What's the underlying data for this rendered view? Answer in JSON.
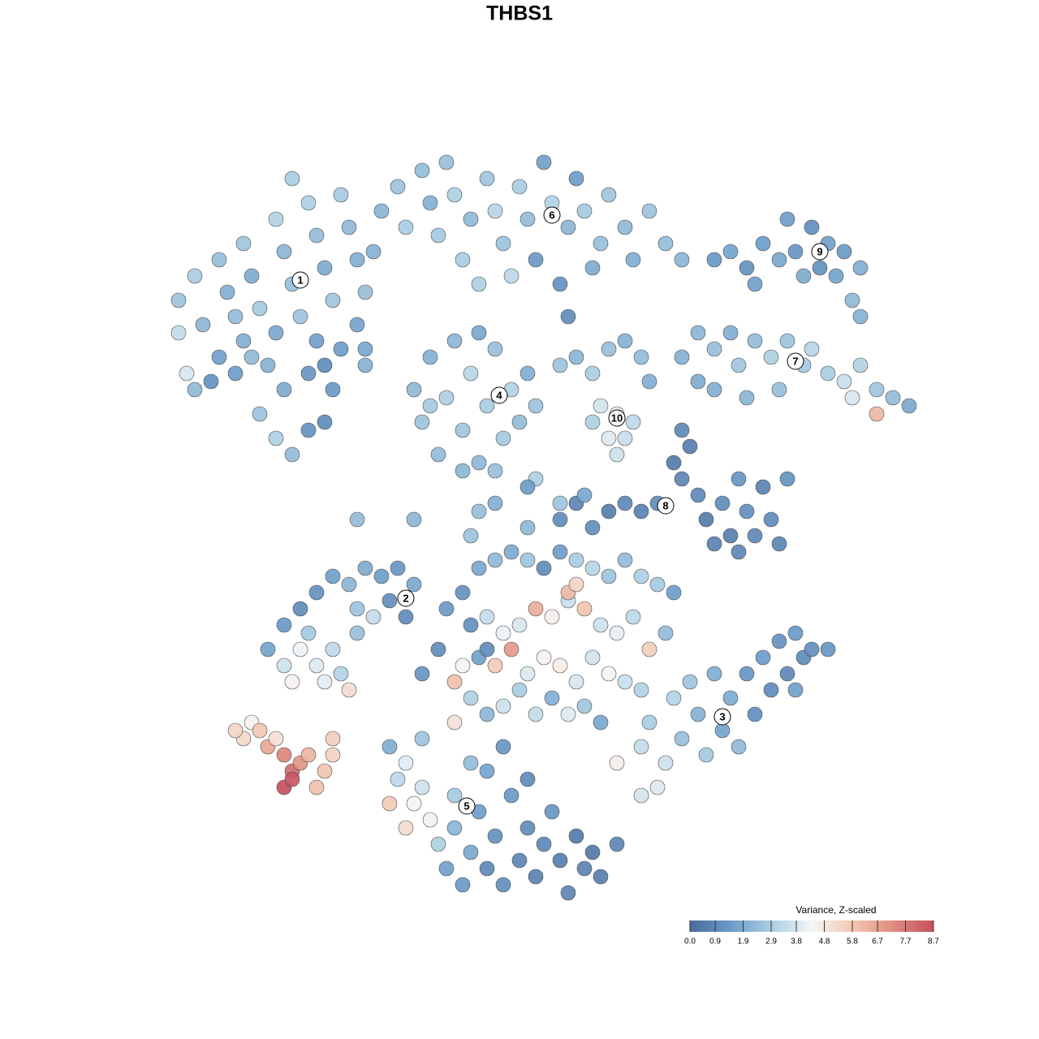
{
  "chart_data": {
    "type": "scatter",
    "title": "THBS1",
    "xlim": [
      0,
      128
    ],
    "ylim": [
      0,
      128
    ],
    "x": [
      22,
      24,
      22,
      25,
      27,
      28,
      30,
      31,
      29,
      32,
      34,
      35,
      36,
      34,
      37,
      38,
      39,
      40,
      41,
      39,
      42,
      43,
      44,
      45,
      44,
      33,
      35,
      38,
      40,
      32,
      34,
      36,
      38,
      40,
      41,
      31,
      29,
      26,
      45,
      46,
      23,
      36,
      42,
      30,
      27,
      47,
      49,
      50,
      52,
      53,
      54,
      55,
      56,
      58,
      60,
      61,
      62,
      64,
      65,
      66,
      67,
      68,
      70,
      71,
      72,
      74,
      75,
      77,
      78,
      80,
      82,
      69,
      70,
      57,
      63,
      73,
      84,
      59,
      51,
      52,
      53,
      54,
      55,
      56,
      57,
      58,
      59,
      60,
      61,
      62,
      63,
      64,
      65,
      66,
      57,
      61,
      53,
      59,
      69,
      71,
      73,
      75,
      77,
      79,
      80,
      74,
      76,
      77,
      75,
      78,
      73,
      76,
      88,
      90,
      92,
      94,
      96,
      98,
      100,
      102,
      104,
      106,
      103,
      101,
      99,
      105,
      106,
      97,
      93,
      86,
      88,
      90,
      91,
      93,
      95,
      97,
      99,
      100,
      102,
      104,
      106,
      108,
      110,
      112,
      96,
      92,
      88,
      108,
      105,
      86,
      84,
      69,
      71,
      73,
      75,
      77,
      79,
      81,
      83,
      84,
      85,
      86,
      87,
      88,
      89,
      90,
      91,
      92,
      93,
      94,
      95,
      96,
      97,
      84,
      91,
      35,
      37,
      39,
      41,
      43,
      45,
      47,
      49,
      51,
      44,
      46,
      48,
      50,
      33,
      35,
      37,
      39,
      41,
      36,
      40,
      42,
      43,
      44,
      38,
      30,
      31,
      32,
      33,
      35,
      36,
      35,
      36,
      37,
      38,
      39,
      40,
      41,
      41,
      34,
      29,
      57,
      59,
      61,
      63,
      65,
      67,
      69,
      71,
      73,
      75,
      77,
      79,
      81,
      83,
      58,
      60,
      62,
      64,
      66,
      68,
      70,
      72,
      74,
      76,
      78,
      80,
      82,
      57,
      59,
      61,
      63,
      65,
      67,
      69,
      71,
      73,
      75,
      77,
      79,
      56,
      58,
      60,
      62,
      64,
      66,
      68,
      70,
      72,
      74,
      56,
      52,
      54,
      70,
      71,
      60,
      55,
      79,
      80,
      82,
      84,
      86,
      87,
      89,
      90,
      91,
      92,
      93,
      94,
      95,
      96,
      97,
      98,
      99,
      100,
      102,
      88,
      85,
      83,
      81,
      79,
      76,
      98,
      48,
      49,
      50,
      51,
      52,
      48,
      53,
      54,
      55,
      56,
      57,
      58,
      59,
      60,
      61,
      62,
      63,
      64,
      65,
      66,
      67,
      68,
      69,
      70,
      71,
      72,
      73,
      74,
      76,
      60,
      62,
      58,
      56,
      65,
      52,
      50,
      44,
      51,
      61,
      58,
      65,
      69,
      72,
      66,
      59,
      45,
      24,
      65
    ],
    "y": [
      91,
      94,
      87,
      88,
      96,
      92,
      98,
      94,
      89,
      90,
      101,
      97,
      93,
      87,
      89,
      103,
      99,
      95,
      91,
      86,
      104,
      100,
      96,
      92,
      88,
      83,
      80,
      82,
      83,
      77,
      74,
      72,
      75,
      76,
      80,
      84,
      82,
      81,
      85,
      97,
      82,
      106,
      85,
      86,
      84,
      102,
      105,
      100,
      107,
      103,
      99,
      108,
      104,
      101,
      106,
      102,
      98,
      105,
      101,
      96,
      108,
      103,
      100,
      106,
      102,
      98,
      104,
      100,
      96,
      102,
      98,
      93,
      89,
      96,
      94,
      95,
      96,
      93,
      80,
      76,
      84,
      72,
      79,
      86,
      75,
      82,
      71,
      78,
      85,
      74,
      80,
      76,
      82,
      78,
      70,
      70,
      78,
      87,
      83,
      84,
      82,
      85,
      86,
      84,
      81,
      78,
      77,
      74,
      74,
      76,
      76,
      72,
      96,
      97,
      95,
      98,
      96,
      97,
      100,
      98,
      97,
      95,
      94,
      95,
      94,
      91,
      89,
      101,
      93,
      87,
      85,
      87,
      83,
      86,
      84,
      86,
      83,
      85,
      82,
      81,
      83,
      80,
      79,
      78,
      80,
      79,
      80,
      77,
      79,
      81,
      84,
      64,
      66,
      63,
      65,
      66,
      65,
      66,
      71,
      69,
      73,
      67,
      64,
      61,
      66,
      62,
      60,
      65,
      62,
      68,
      64,
      61,
      69,
      75,
      69,
      51,
      53,
      55,
      57,
      56,
      58,
      57,
      58,
      56,
      53,
      52,
      54,
      52,
      48,
      46,
      48,
      46,
      48,
      44,
      44,
      45,
      43,
      50,
      50,
      37,
      39,
      38,
      36,
      35,
      33,
      31,
      32,
      34,
      35,
      31,
      33,
      35,
      37,
      37,
      38,
      55,
      58,
      59,
      60,
      59,
      58,
      60,
      59,
      58,
      57,
      59,
      57,
      56,
      55,
      51,
      52,
      50,
      51,
      53,
      52,
      54,
      53,
      51,
      50,
      52,
      48,
      50,
      46,
      47,
      46,
      48,
      45,
      47,
      46,
      44,
      47,
      45,
      44,
      43,
      44,
      42,
      40,
      41,
      43,
      40,
      42,
      40,
      41,
      39,
      39,
      45,
      48,
      55,
      56,
      48,
      53,
      36,
      39,
      34,
      37,
      40,
      35,
      38,
      42,
      36,
      45,
      40,
      47,
      43,
      49,
      45,
      50,
      47,
      48,
      48,
      45,
      44,
      42,
      31,
      30,
      34,
      43,
      36,
      32,
      34,
      29,
      31,
      29,
      27,
      24,
      21,
      26,
      19,
      23,
      28,
      21,
      25,
      19,
      30,
      22,
      26,
      20,
      24,
      28,
      22,
      18,
      25,
      21,
      23,
      20,
      24,
      33,
      36,
      34,
      30,
      32,
      37,
      26,
      64,
      64,
      66,
      62,
      63,
      66,
      67,
      69,
      65,
      83,
      80,
      68
    ],
    "values": [
      2.6,
      2.9,
      3.4,
      2.2,
      2.5,
      2.0,
      2.7,
      1.9,
      2.4,
      2.8,
      3.1,
      2.2,
      2.5,
      1.8,
      2.6,
      3.0,
      2.4,
      1.9,
      2.7,
      1.6,
      2.8,
      2.3,
      2.0,
      2.5,
      1.7,
      2.1,
      1.9,
      1.3,
      1.0,
      2.6,
      3.0,
      2.4,
      1.2,
      1.0,
      1.4,
      2.3,
      1.5,
      1.2,
      1.8,
      2.1,
      3.8,
      2.9,
      1.5,
      2.0,
      1.6,
      2.2,
      2.6,
      2.9,
      2.4,
      2.1,
      2.8,
      2.5,
      3.0,
      2.3,
      2.7,
      3.2,
      2.6,
      2.9,
      2.4,
      1.4,
      1.6,
      3.1,
      2.2,
      1.5,
      2.8,
      2.5,
      2.7,
      2.3,
      2.0,
      2.6,
      2.4,
      1.2,
      1.0,
      2.9,
      3.3,
      1.9,
      2.2,
      3.0,
      2.3,
      2.6,
      2.1,
      2.4,
      3.0,
      2.2,
      2.7,
      3.2,
      2.3,
      2.9,
      2.5,
      2.8,
      3.1,
      2.4,
      2.0,
      2.6,
      2.2,
      2.5,
      2.8,
      1.8,
      2.6,
      2.2,
      2.9,
      2.5,
      2.1,
      2.4,
      2.0,
      3.7,
      4.0,
      3.5,
      3.9,
      3.3,
      3.0,
      3.6,
      1.4,
      1.7,
      1.2,
      1.5,
      1.8,
      1.3,
      1.1,
      1.6,
      1.4,
      2.0,
      1.7,
      1.2,
      1.9,
      2.3,
      2.1,
      1.5,
      1.6,
      2.2,
      2.5,
      2.0,
      2.7,
      2.4,
      3.0,
      2.6,
      2.8,
      3.2,
      2.9,
      3.5,
      3.1,
      2.7,
      2.4,
      1.8,
      2.5,
      2.2,
      2.0,
      6.2,
      3.8,
      1.9,
      2.1,
      1.0,
      0.8,
      1.1,
      0.6,
      0.9,
      0.7,
      1.0,
      0.5,
      0.8,
      0.6,
      0.9,
      0.5,
      0.7,
      1.0,
      0.6,
      0.8,
      1.1,
      0.9,
      0.7,
      1.0,
      0.8,
      1.2,
      0.9,
      1.3,
      1.4,
      1.0,
      1.2,
      1.6,
      2.2,
      1.9,
      1.5,
      1.3,
      1.8,
      2.6,
      3.4,
      1.1,
      1.0,
      1.7,
      3.6,
      4.2,
      3.9,
      3.3,
      4.5,
      4.0,
      3.1,
      5.2,
      2.5,
      2.8,
      5.3,
      4.5,
      5.8,
      6.6,
      7.4,
      8.0,
      8.7,
      8.5,
      7.0,
      6.3,
      6.0,
      5.9,
      5.5,
      5.6,
      5.0,
      5.4,
      1.2,
      1.8,
      2.3,
      1.9,
      2.7,
      1.0,
      1.5,
      2.9,
      3.2,
      2.6,
      2.4,
      3.0,
      2.8,
      1.5,
      1.1,
      3.4,
      4.2,
      3.8,
      6.5,
      4.6,
      3.5,
      5.9,
      3.6,
      4.1,
      3.3,
      5.6,
      2.4,
      4.3,
      1.6,
      5.7,
      6.9,
      3.9,
      4.5,
      4.7,
      3.8,
      3.7,
      4.4,
      3.5,
      3.1,
      6.0,
      3.0,
      2.2,
      3.6,
      2.9,
      3.4,
      2.0,
      3.9,
      2.7,
      1.8,
      5.0,
      1.3,
      1.0,
      6.2,
      5.4,
      1.0,
      1.4,
      3.4,
      2.9,
      3.6,
      2.5,
      2.1,
      2.8,
      1.7,
      1.9,
      2.3,
      1.3,
      1.1,
      1.5,
      1.0,
      1.2,
      0.9,
      1.4,
      1.0,
      1.1,
      1.3,
      2.0,
      2.7,
      3.1,
      3.9,
      3.7,
      4.7,
      1.6,
      2.0,
      3.3,
      4.0,
      4.4,
      3.6,
      5.7,
      4.5,
      3.0,
      1.6,
      2.2,
      1.4,
      1.8,
      1.5,
      0.9,
      1.2,
      1.1,
      1.4,
      0.8,
      1.0,
      0.7,
      0.9,
      1.3,
      0.6,
      0.8,
      0.5,
      0.7,
      0.4,
      0.6,
      0.8,
      1.7,
      1.3,
      2.4,
      2.8,
      1.0,
      2.6,
      5.2,
      2.4,
      2.2,
      2.0,
      2.6,
      2.3,
      2.7,
      1.8,
      3.0,
      2.5,
      2.1,
      2.3,
      1.5
    ],
    "clusters": [
      {
        "label": "1",
        "x": 37,
        "y": 93.5
      },
      {
        "label": "2",
        "x": 50,
        "y": 54.3
      },
      {
        "label": "3",
        "x": 89,
        "y": 39.7
      },
      {
        "label": "4",
        "x": 61.5,
        "y": 79.3
      },
      {
        "label": "5",
        "x": 57.5,
        "y": 28.7
      },
      {
        "label": "6",
        "x": 68,
        "y": 101.5
      },
      {
        "label": "7",
        "x": 98,
        "y": 83.5
      },
      {
        "label": "8",
        "x": 82,
        "y": 65.7
      },
      {
        "label": "9",
        "x": 101,
        "y": 97
      },
      {
        "label": "10",
        "x": 76,
        "y": 76.5
      }
    ],
    "colorbar": {
      "title": "Variance, Z-scaled",
      "clim": [
        0,
        8.7
      ],
      "ticks": [
        {
          "value": 0,
          "label": "0.0"
        },
        0.9,
        1.9,
        2.9,
        3.8,
        4.8,
        5.8,
        6.7,
        7.7,
        8.7
      ],
      "colors": [
        "#4a6b9b",
        "#6a9bc8",
        "#a9cde2",
        "#f4f6f7",
        "#f3c8b2",
        "#e08c80",
        "#c64f5f"
      ]
    }
  }
}
